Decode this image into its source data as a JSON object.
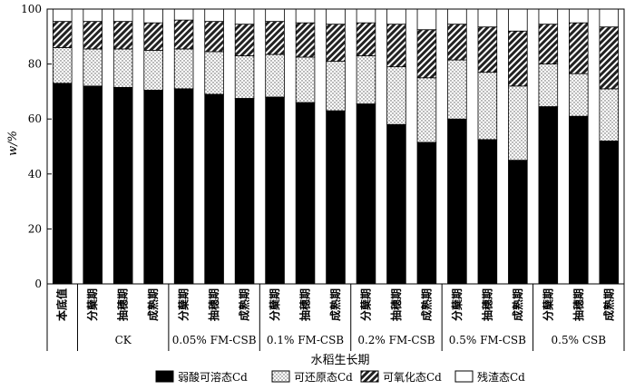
{
  "chart_data": {
    "type": "bar",
    "stacked": true,
    "ylabel": "w/%",
    "xlabel": "水稻生长期",
    "ylim": [
      0,
      100
    ],
    "yticks": [
      0,
      20,
      40,
      60,
      80,
      100
    ],
    "categories": [
      "本底值",
      "分蘖期",
      "抽穗期",
      "成熟期",
      "分蘖期",
      "抽穗期",
      "成熟期",
      "分蘖期",
      "抽穗期",
      "成熟期",
      "分蘖期",
      "抽穗期",
      "成熟期",
      "分蘖期",
      "抽穗期",
      "成熟期",
      "分蘖期",
      "抽穗期",
      "成熟期"
    ],
    "groups": [
      {
        "label": "",
        "span": [
          0,
          0
        ]
      },
      {
        "label": "CK",
        "span": [
          1,
          3
        ]
      },
      {
        "label": "0.05% FM-CSB",
        "span": [
          4,
          6
        ]
      },
      {
        "label": "0.1% FM-CSB",
        "span": [
          7,
          9
        ]
      },
      {
        "label": "0.2% FM-CSB",
        "span": [
          10,
          12
        ]
      },
      {
        "label": "0.5% FM-CSB",
        "span": [
          13,
          15
        ]
      },
      {
        "label": "0.5% CSB",
        "span": [
          16,
          18
        ]
      }
    ],
    "series": [
      {
        "name": "弱酸可溶态Cd",
        "pattern": "solid-black",
        "values": [
          73,
          72,
          71.5,
          70.5,
          71,
          69,
          67.5,
          68,
          66,
          63,
          65.5,
          58,
          51.5,
          60,
          52.5,
          45,
          64.5,
          61,
          52
        ]
      },
      {
        "name": "可还原态Cd",
        "pattern": "dotted",
        "values": [
          13,
          13.5,
          14,
          14.5,
          14.5,
          15.5,
          15.5,
          15.5,
          16.5,
          18,
          17.5,
          21,
          23.5,
          21.5,
          24.5,
          27,
          15.5,
          15.5,
          19
        ]
      },
      {
        "name": "可氧化态Cd",
        "pattern": "hatched",
        "values": [
          9.5,
          10,
          10,
          10,
          10.5,
          11,
          11.5,
          12,
          12.5,
          13.5,
          12,
          15.5,
          17.5,
          13,
          16.5,
          20,
          14.5,
          18.5,
          22.5
        ]
      },
      {
        "name": "残渣态Cd",
        "pattern": "white",
        "values": [
          4.5,
          4.5,
          4.5,
          5,
          4,
          4.5,
          5.5,
          4.5,
          5,
          5.5,
          5,
          5.5,
          7.5,
          5.5,
          6.5,
          8,
          5.5,
          5,
          6.5
        ]
      }
    ],
    "legend_position": "bottom",
    "grid": false
  }
}
